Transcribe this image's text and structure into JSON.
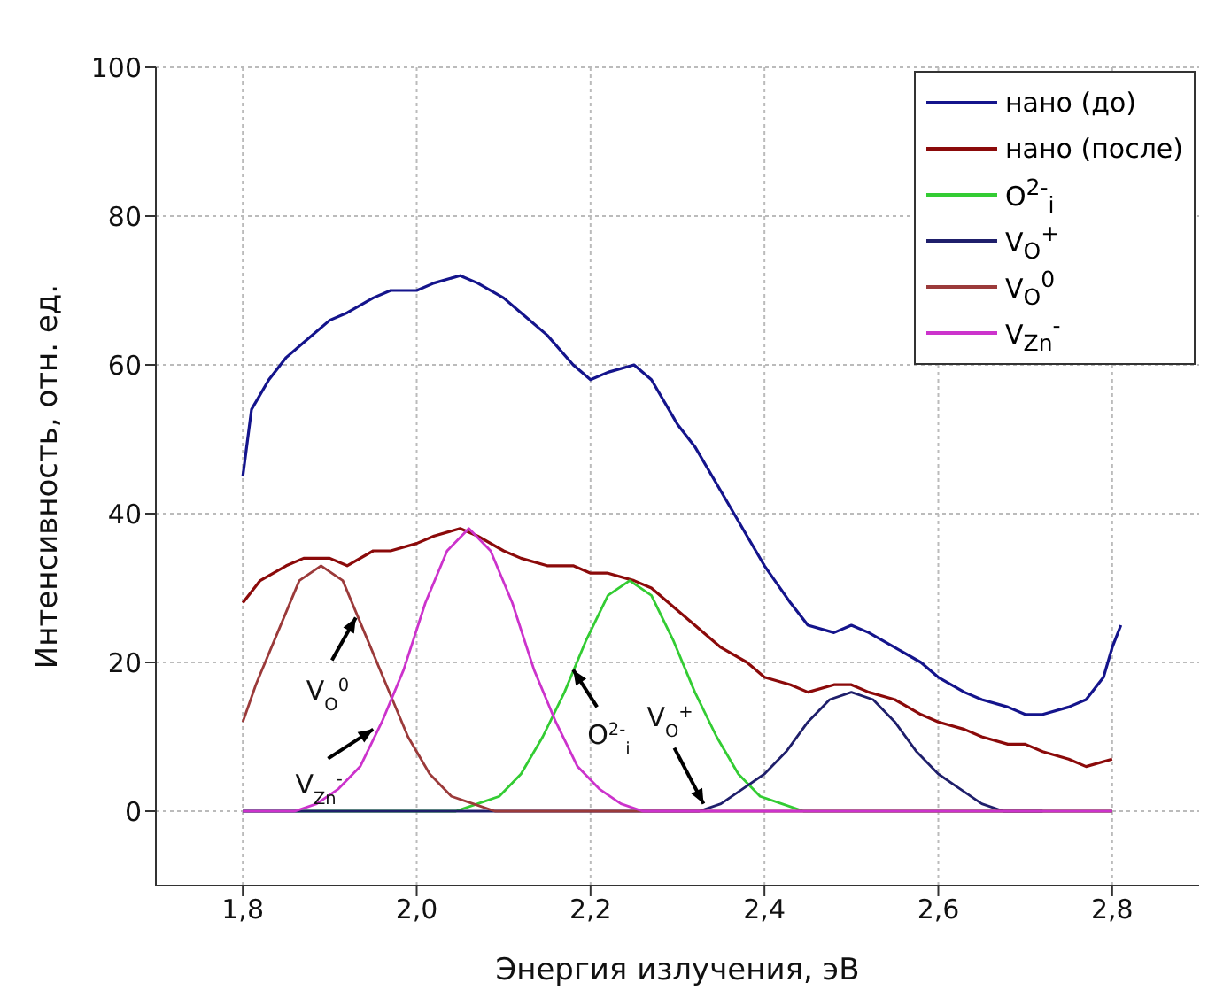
{
  "chart_data": {
    "type": "line",
    "xlabel": "Энергия излучения, эВ",
    "ylabel": "Интенсивность, отн. ед.",
    "xlim": [
      1.7,
      2.9
    ],
    "ylim": [
      -10,
      100
    ],
    "xticks": [
      {
        "value": 1.8,
        "label": "1,8"
      },
      {
        "value": 2.0,
        "label": "2,0"
      },
      {
        "value": 2.2,
        "label": "2,2"
      },
      {
        "value": 2.4,
        "label": "2,4"
      },
      {
        "value": 2.6,
        "label": "2,6"
      },
      {
        "value": 2.8,
        "label": "2,8"
      }
    ],
    "yticks": [
      0,
      20,
      40,
      60,
      80,
      100
    ],
    "grid": true,
    "legend": "top right",
    "marker": "none",
    "line_style": "solid",
    "series": [
      {
        "name": "нано (до)",
        "color": "#14148c",
        "x": [
          1.8,
          1.81,
          1.83,
          1.85,
          1.87,
          1.9,
          1.92,
          1.95,
          1.97,
          2.0,
          2.02,
          2.05,
          2.07,
          2.1,
          2.12,
          2.15,
          2.18,
          2.2,
          2.22,
          2.25,
          2.27,
          2.3,
          2.32,
          2.35,
          2.38,
          2.4,
          2.43,
          2.45,
          2.48,
          2.5,
          2.52,
          2.55,
          2.58,
          2.6,
          2.63,
          2.65,
          2.68,
          2.7,
          2.72,
          2.75,
          2.77,
          2.79,
          2.8,
          2.81
        ],
        "values": [
          45,
          54,
          58,
          61,
          63,
          66,
          67,
          69,
          70,
          70,
          71,
          72,
          71,
          69,
          67,
          64,
          60,
          58,
          59,
          60,
          58,
          52,
          49,
          43,
          37,
          33,
          28,
          25,
          24,
          25,
          24,
          22,
          20,
          18,
          16,
          15,
          14,
          13,
          13,
          14,
          15,
          18,
          22,
          25
        ]
      },
      {
        "name": "нано (после)",
        "color": "#8b0a0a",
        "x": [
          1.8,
          1.82,
          1.85,
          1.87,
          1.9,
          1.92,
          1.95,
          1.97,
          2.0,
          2.02,
          2.05,
          2.07,
          2.1,
          2.12,
          2.15,
          2.18,
          2.2,
          2.22,
          2.25,
          2.27,
          2.3,
          2.32,
          2.35,
          2.38,
          2.4,
          2.43,
          2.45,
          2.48,
          2.5,
          2.52,
          2.55,
          2.58,
          2.6,
          2.63,
          2.65,
          2.68,
          2.7,
          2.72,
          2.75,
          2.77,
          2.8
        ],
        "values": [
          28,
          31,
          33,
          34,
          34,
          33,
          35,
          35,
          36,
          37,
          38,
          37,
          35,
          34,
          33,
          33,
          32,
          32,
          31,
          30,
          27,
          25,
          22,
          20,
          18,
          17,
          16,
          17,
          17,
          16,
          15,
          13,
          12,
          11,
          10,
          9,
          9,
          8,
          7,
          6,
          7
        ]
      },
      {
        "name": "O$^{2-}$$_{i}$",
        "color": "#33cc33",
        "x": [
          1.8,
          2.045,
          2.07,
          2.095,
          2.12,
          2.145,
          2.17,
          2.195,
          2.22,
          2.245,
          2.27,
          2.295,
          2.32,
          2.345,
          2.37,
          2.395,
          2.42,
          2.445,
          2.8
        ],
        "values": [
          0,
          0,
          1,
          2,
          5,
          10,
          16,
          23,
          29,
          31,
          29,
          23,
          16,
          10,
          5,
          2,
          1,
          0,
          0
        ]
      },
      {
        "name": "V$_{O}$$^{+}$",
        "color": "#1f1f6b",
        "x": [
          1.8,
          2.3,
          2.325,
          2.35,
          2.375,
          2.4,
          2.425,
          2.45,
          2.475,
          2.5,
          2.525,
          2.55,
          2.575,
          2.6,
          2.625,
          2.65,
          2.675,
          2.72
        ],
        "values": [
          0,
          0,
          0,
          1,
          3,
          5,
          8,
          12,
          15,
          16,
          15,
          12,
          8,
          5,
          3,
          1,
          0,
          0
        ]
      },
      {
        "name": "V$_{O}$$^{0}$",
        "color": "#9b3a3a",
        "x": [
          1.8,
          1.815,
          1.84,
          1.865,
          1.89,
          1.915,
          1.94,
          1.965,
          1.99,
          2.015,
          2.04,
          2.065,
          2.09,
          2.8
        ],
        "values": [
          12,
          17,
          24,
          31,
          33,
          31,
          24,
          17,
          10,
          5,
          2,
          1,
          0,
          0
        ]
      },
      {
        "name": "V$_{Zn}$$^{-}$",
        "color": "#cc33cc",
        "x": [
          1.8,
          1.86,
          1.885,
          1.91,
          1.935,
          1.96,
          1.985,
          2.01,
          2.035,
          2.06,
          2.085,
          2.11,
          2.135,
          2.16,
          2.185,
          2.21,
          2.235,
          2.26,
          2.8
        ],
        "values": [
          0,
          0,
          1,
          3,
          6,
          12,
          19,
          28,
          35,
          38,
          35,
          28,
          19,
          12,
          6,
          3,
          1,
          0,
          0
        ]
      }
    ],
    "annotations": [
      {
        "text": "V$_{O}$$^{0}$",
        "x": 1.93,
        "y": 26
      },
      {
        "text": "V$_{Zn}$$^{-}$",
        "x": 1.95,
        "y": 11
      },
      {
        "text": "O$^{2-}$$_{i}$",
        "x": 2.18,
        "y": 19
      },
      {
        "text": "V$_{O}$$^{+}$",
        "x": 2.33,
        "y": 1
      }
    ]
  }
}
